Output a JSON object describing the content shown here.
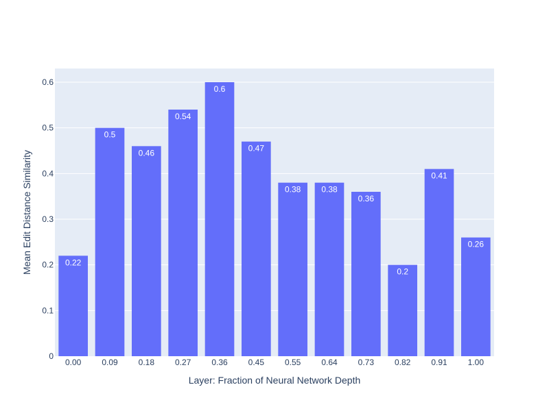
{
  "chart_data": {
    "type": "bar",
    "categories": [
      "0.00",
      "0.09",
      "0.18",
      "0.27",
      "0.36",
      "0.45",
      "0.55",
      "0.64",
      "0.73",
      "0.82",
      "0.91",
      "1.00"
    ],
    "values": [
      0.22,
      0.5,
      0.46,
      0.54,
      0.6,
      0.47,
      0.38,
      0.38,
      0.36,
      0.2,
      0.41,
      0.26
    ],
    "data_labels": [
      "0.22",
      "0.5",
      "0.46",
      "0.54",
      "0.6",
      "0.47",
      "0.38",
      "0.38",
      "0.36",
      "0.2",
      "0.41",
      "0.26"
    ],
    "title": "",
    "xlabel": "Layer: Fraction of Neural Network Depth",
    "ylabel": "Mean Edit Distance Similarity",
    "ylim": [
      0,
      0.63
    ],
    "yticks": [
      0,
      0.1,
      0.2,
      0.3,
      0.4,
      0.5,
      0.6
    ],
    "ytick_labels": [
      "0",
      "0.1",
      "0.2",
      "0.3",
      "0.4",
      "0.5",
      "0.6"
    ],
    "grid": true,
    "legend": "none",
    "colors": {
      "bar": "#636efa",
      "plot_background": "#e5ecf6",
      "gridline": "#ffffff",
      "text": "#2a3f5f",
      "data_label": "#ffffff"
    }
  }
}
